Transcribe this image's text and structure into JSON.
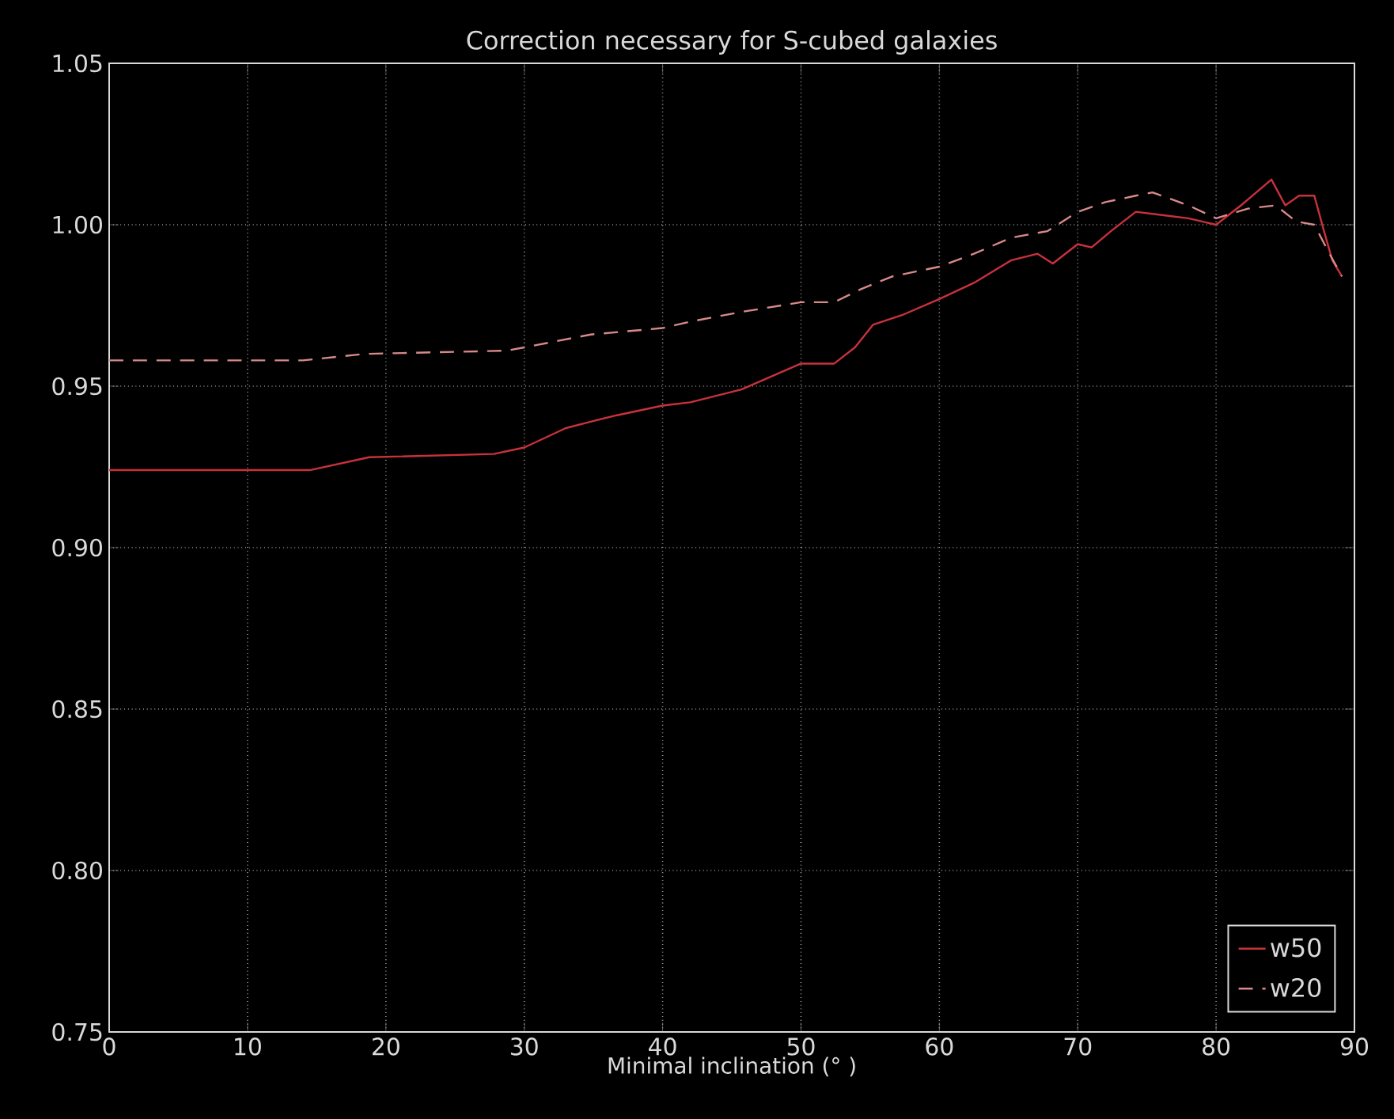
{
  "chart_data": {
    "type": "line",
    "title": "Correction necessary for S-cubed galaxies",
    "xlabel": "Minimal inclination (° )",
    "xlim": [
      0,
      90
    ],
    "ylim": [
      0.75,
      1.05
    ],
    "xticks": [
      0,
      10,
      20,
      30,
      40,
      50,
      60,
      70,
      80,
      90
    ],
    "yticks": [
      {
        "value": 0.75,
        "label": "0.75"
      },
      {
        "value": 0.8,
        "label": "0.80"
      },
      {
        "value": 0.85,
        "label": "0.85"
      },
      {
        "value": 0.9,
        "label": "0.90"
      },
      {
        "value": 0.95,
        "label": "0.95"
      },
      {
        "value": 1.0,
        "label": "1.00"
      },
      {
        "value": 1.05,
        "label": "1.05"
      }
    ],
    "grid": true,
    "legend": "bottom right",
    "marker": "none",
    "series": [
      {
        "name": "w50",
        "color": "#c8323c",
        "line_style": "solid",
        "x": [
          0,
          14.5,
          18.8,
          27.8,
          30,
          33,
          34.8,
          36.7,
          40,
          42,
          45.7,
          50,
          52.4,
          53.9,
          55.2,
          57.3,
          60,
          62.5,
          65.2,
          67.1,
          68.2,
          70,
          71,
          72.4,
          74.2,
          76.1,
          78,
          80,
          81.8,
          84,
          85,
          86,
          87.1,
          87.8,
          88.4,
          89.1
        ],
        "values": [
          0.924,
          0.924,
          0.928,
          0.929,
          0.931,
          0.937,
          0.939,
          0.941,
          0.944,
          0.945,
          0.949,
          0.957,
          0.957,
          0.962,
          0.969,
          0.972,
          0.977,
          0.982,
          0.989,
          0.991,
          0.988,
          0.994,
          0.993,
          0.998,
          1.004,
          1.003,
          1.002,
          1.0,
          1.006,
          1.014,
          1.006,
          1.009,
          1.009,
          0.998,
          0.989,
          0.984
        ]
      },
      {
        "name": "w20",
        "color": "#d88a8a",
        "line_style": "dashed",
        "x": [
          0,
          14,
          18.5,
          28.7,
          30,
          34.8,
          40,
          42,
          45.7,
          50,
          52.4,
          54.3,
          56.6,
          60,
          62.5,
          65.2,
          67.8,
          70,
          72,
          74.2,
          75.4,
          78,
          80,
          82.3,
          84.3,
          85.8,
          87.1,
          88.2,
          89.1
        ],
        "values": [
          0.958,
          0.958,
          0.96,
          0.961,
          0.962,
          0.966,
          0.968,
          0.97,
          0.973,
          0.976,
          0.976,
          0.98,
          0.984,
          0.987,
          0.991,
          0.996,
          0.998,
          1.004,
          1.007,
          1.009,
          1.01,
          1.006,
          1.002,
          1.005,
          1.006,
          1.001,
          1.0,
          0.991,
          0.984
        ]
      }
    ]
  }
}
